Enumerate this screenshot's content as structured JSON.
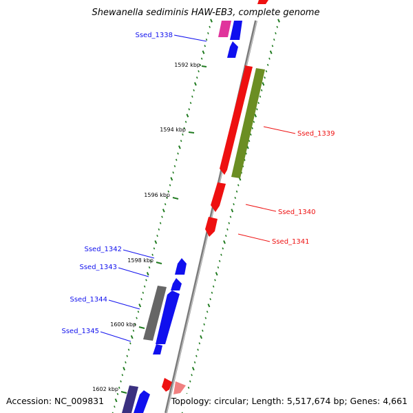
{
  "title": "Shewanella sediminis HAW-EB3, complete genome",
  "footer": {
    "accession": "Accession: NC_009831",
    "topology": "Topology: circular; Length: 5,517,674 bp; Genes: 4,661"
  },
  "kbp_labels": [
    "1592 kbp",
    "1594 kbp",
    "1596 kbp",
    "1598 kbp",
    "1600 kbp",
    "1602 kbp"
  ],
  "gene_labels": {
    "ssed_1338": "Ssed_1338",
    "ssed_1339": "Ssed_1339",
    "ssed_1340": "Ssed_1340",
    "ssed_1341": "Ssed_1341",
    "ssed_1342": "Ssed_1342",
    "ssed_1343": "Ssed_1343",
    "ssed_1344": "Ssed_1344",
    "ssed_1345": "Ssed_1345"
  },
  "colors": {
    "forward_blue": "#1010ee",
    "reverse_red": "#ee1010",
    "olive": "#6b8e23",
    "magenta": "#e0349c",
    "gray": "#666666",
    "navy": "#3a3080",
    "pink": "#f08080",
    "tick_green": "#1f7a1f",
    "backbone": "#888888"
  }
}
